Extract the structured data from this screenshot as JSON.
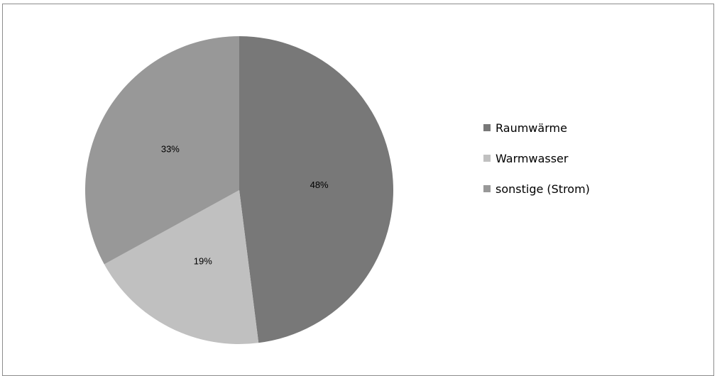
{
  "chart_data": {
    "type": "pie",
    "categories": [
      "Raumwärme",
      "Warmwasser",
      "sonstige (Strom)"
    ],
    "values": [
      48,
      19,
      33
    ],
    "labels": [
      "48%",
      "19%",
      "33%"
    ],
    "colors": [
      "#787878",
      "#c0c0c0",
      "#989898"
    ],
    "title": "",
    "legend": {
      "position": "right",
      "entries": [
        "Raumwärme",
        "Warmwasser",
        "sonstige (Strom)"
      ]
    }
  }
}
